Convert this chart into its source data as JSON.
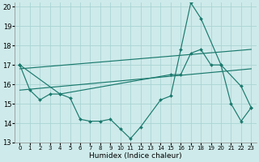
{
  "background_color": "#ceeaea",
  "grid_color": "#aad4d4",
  "line_color": "#1a7a6e",
  "xlim": [
    -0.5,
    23.5
  ],
  "ylim": [
    13,
    20.2
  ],
  "yticks": [
    13,
    14,
    15,
    16,
    17,
    18,
    19,
    20
  ],
  "xticks": [
    0,
    1,
    2,
    3,
    4,
    5,
    6,
    7,
    8,
    9,
    10,
    11,
    12,
    13,
    14,
    15,
    16,
    17,
    18,
    19,
    20,
    21,
    22,
    23
  ],
  "xlabel": "Humidex (Indice chaleur)",
  "series": [
    {
      "x": [
        0,
        1,
        2,
        3,
        4,
        5,
        6,
        7,
        8,
        9,
        10,
        11,
        12,
        14,
        15,
        16,
        17,
        18,
        20,
        22,
        23
      ],
      "y": [
        17.0,
        15.7,
        15.2,
        15.5,
        15.5,
        15.3,
        14.2,
        14.1,
        14.1,
        14.2,
        13.7,
        13.2,
        13.8,
        15.2,
        15.4,
        17.8,
        20.2,
        19.4,
        17.0,
        15.9,
        14.8
      ],
      "marker": true
    },
    {
      "x": [
        0,
        4,
        15,
        16,
        17,
        18,
        19,
        20,
        21,
        22,
        23
      ],
      "y": [
        17.0,
        15.5,
        16.5,
        16.5,
        17.6,
        17.8,
        17.0,
        17.0,
        15.0,
        14.1,
        14.8
      ],
      "marker": true
    },
    {
      "x": [
        0,
        23
      ],
      "y": [
        16.8,
        17.8
      ],
      "marker": false
    },
    {
      "x": [
        0,
        23
      ],
      "y": [
        15.7,
        16.8
      ],
      "marker": false
    }
  ]
}
